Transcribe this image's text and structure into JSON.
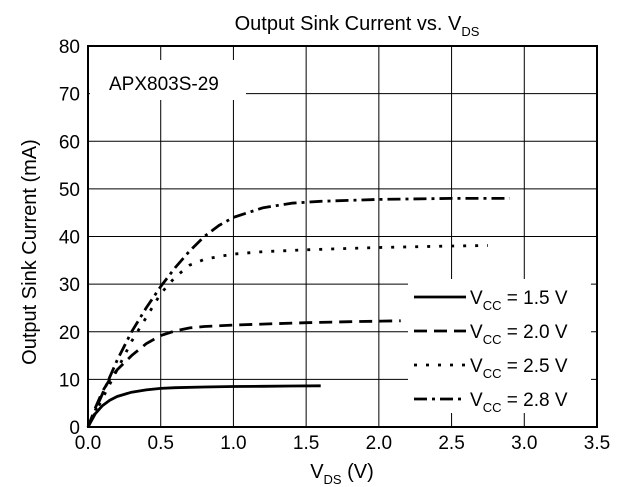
{
  "chart_data": {
    "type": "line",
    "title_main": "Output Sink Current vs. V",
    "title_sub": "DS",
    "xlabel_main": "V",
    "xlabel_sub": "DS",
    "xlabel_unit": " (V)",
    "ylabel": "Output Sink Current (mA)",
    "xlim": [
      0,
      3.5
    ],
    "ylim": [
      0,
      80
    ],
    "xticks": [
      0,
      0.5,
      1,
      1.5,
      2,
      2.5,
      3,
      3.5
    ],
    "xtick_labels": [
      "0.0",
      "0.5",
      "1.0",
      "1.5",
      "2.0",
      "2.5",
      "3.0",
      "3.5"
    ],
    "yticks": [
      0,
      10,
      20,
      30,
      40,
      50,
      60,
      70,
      80
    ],
    "ytick_labels": [
      "0",
      "10",
      "20",
      "30",
      "40",
      "50",
      "60",
      "70",
      "80"
    ],
    "grid": true,
    "annotation": "APX803S-29",
    "legend_position": "bottom-right",
    "series": [
      {
        "name_main": "V",
        "name_sub": "CC",
        "name_rest": " = 1.5 V",
        "dash": "solid",
        "x": [
          0,
          0.05,
          0.1,
          0.15,
          0.2,
          0.3,
          0.4,
          0.5,
          0.6,
          0.8,
          1.0,
          1.2,
          1.4,
          1.6
        ],
        "y": [
          0,
          2.8,
          4.5,
          5.6,
          6.4,
          7.3,
          7.8,
          8.1,
          8.25,
          8.4,
          8.5,
          8.55,
          8.6,
          8.65
        ]
      },
      {
        "name_main": "V",
        "name_sub": "CC",
        "name_rest": " = 2.0 V",
        "dash": "dash",
        "x": [
          0,
          0.05,
          0.1,
          0.15,
          0.2,
          0.3,
          0.4,
          0.5,
          0.6,
          0.7,
          0.8,
          1.0,
          1.2,
          1.5,
          1.8,
          2.15
        ],
        "y": [
          0,
          4,
          7.5,
          10,
          12,
          15,
          17.5,
          19.2,
          20.2,
          20.8,
          21.1,
          21.4,
          21.6,
          21.9,
          22.1,
          22.3
        ]
      },
      {
        "name_main": "V",
        "name_sub": "CC",
        "name_rest": " = 2.5 V",
        "dash": "dot",
        "x": [
          0,
          0.1,
          0.2,
          0.3,
          0.4,
          0.5,
          0.6,
          0.7,
          0.8,
          0.9,
          1.0,
          1.2,
          1.5,
          2.0,
          2.5,
          2.75
        ],
        "y": [
          0,
          6,
          12,
          18,
          23,
          28,
          31.5,
          34,
          35.2,
          35.8,
          36.3,
          36.8,
          37.2,
          37.7,
          38,
          38.1
        ]
      },
      {
        "name_main": "V",
        "name_sub": "CC",
        "name_rest": " = 2.8 V",
        "dash": "dashdot",
        "x": [
          0,
          0.1,
          0.2,
          0.3,
          0.4,
          0.5,
          0.6,
          0.7,
          0.8,
          0.9,
          1.0,
          1.2,
          1.4,
          1.6,
          2.0,
          2.5,
          2.9
        ],
        "y": [
          0,
          7,
          14,
          20,
          25,
          29.5,
          33.5,
          37,
          40,
          42.3,
          44,
          46,
          47,
          47.4,
          47.8,
          48,
          48
        ]
      }
    ]
  }
}
